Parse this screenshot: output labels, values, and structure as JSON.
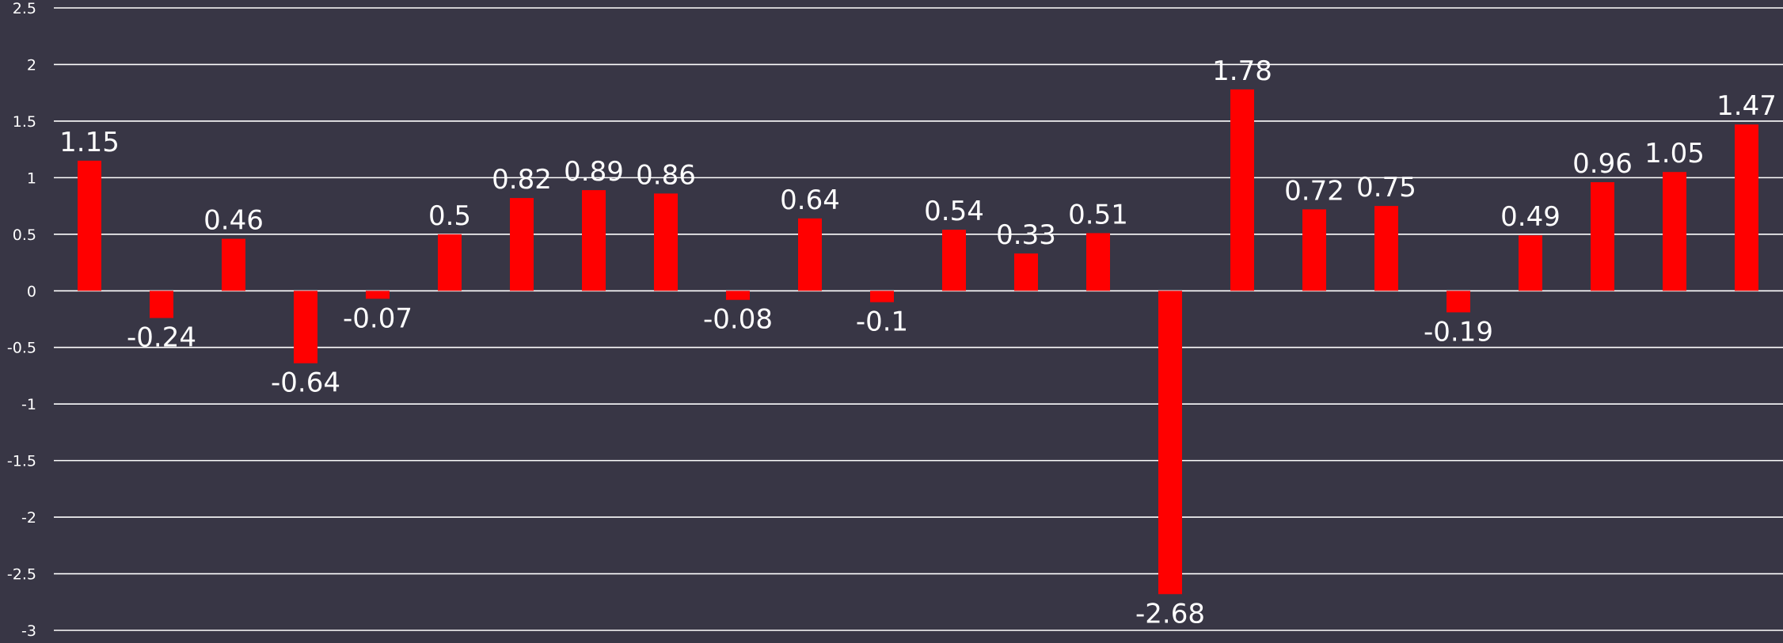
{
  "chart_data": {
    "type": "bar",
    "title": "",
    "xlabel": "",
    "ylabel": "",
    "ylim": [
      -3,
      2.5
    ],
    "yticks": [
      "2.5",
      "2",
      "1.5",
      "1",
      "0.5",
      "0",
      "-0.5",
      "-1",
      "-1.5",
      "-2",
      "-2.5",
      "-3"
    ],
    "grid": true,
    "legend": "none",
    "values": [
      1.15,
      -0.24,
      0.46,
      -0.64,
      -0.07,
      0.5,
      0.82,
      0.89,
      0.86,
      -0.08,
      0.64,
      -0.1,
      0.54,
      0.33,
      0.51,
      -2.68,
      1.78,
      0.72,
      0.75,
      -0.19,
      0.49,
      0.96,
      1.05,
      1.47
    ],
    "data_labels": [
      "1.15",
      "-0.24",
      "0.46",
      "-0.64",
      "-0.07",
      "0.5",
      "0.82",
      "0.89",
      "0.86",
      "-0.08",
      "0.64",
      "-0.1",
      "0.54",
      "0.33",
      "0.51",
      "-2.68",
      "1.78",
      "0.72",
      "0.75",
      "-0.19",
      "0.49",
      "0.96",
      "1.05",
      "1.47"
    ],
    "colors": {
      "background": "#383645",
      "bar": "#ff0000",
      "grid": "#ffffff",
      "text": "#ffffff"
    }
  }
}
